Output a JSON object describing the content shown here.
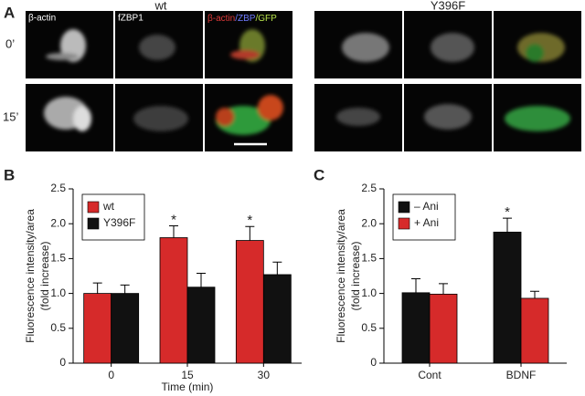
{
  "panel_labels": [
    "A",
    "B",
    "C"
  ],
  "panel_a": {
    "groups": [
      "wt",
      "Y396F"
    ],
    "rows": [
      "0’",
      "15’"
    ],
    "channel_labels": [
      "β-actin",
      "fZBP1"
    ],
    "merge_label": [
      {
        "text": "β-actin",
        "color": "#e03a3a"
      },
      {
        "text": "/ZBP",
        "color": "#6f7bff"
      },
      {
        "text": "/GFP",
        "color": "#b5e04a"
      }
    ]
  },
  "chart_data": [
    {
      "type": "bar",
      "y_label": [
        "Fluorescence intensity/area",
        "(fold increase)"
      ],
      "x_label": "Time (min)",
      "categories": [
        "0",
        "15",
        "30"
      ],
      "series": [
        {
          "name": "wt",
          "color": "#d62a2a",
          "values": [
            1.0,
            1.8,
            1.76
          ],
          "errors": [
            0.15,
            0.17,
            0.2
          ],
          "annotations": [
            null,
            "*",
            "*"
          ]
        },
        {
          "name": "Y396F",
          "color": "#111111",
          "values": [
            1.0,
            1.09,
            1.27
          ],
          "errors": [
            0.12,
            0.2,
            0.18
          ],
          "annotations": [
            null,
            null,
            null
          ]
        }
      ],
      "ylim": [
        0,
        2.5
      ],
      "yticks": [
        0,
        0.5,
        {
          "value": 1,
          "label": "1.0"
        },
        1.5,
        {
          "value": 2,
          "label": "2.0"
        },
        2.5
      ],
      "legend": "top-left"
    },
    {
      "type": "bar",
      "y_label": [
        "Fluorescence intensity/area",
        "(fold increase)"
      ],
      "categories": [
        "Cont",
        "BDNF"
      ],
      "series": [
        {
          "name": "– Ani",
          "color": "#111111",
          "values": [
            1.01,
            1.88
          ],
          "errors": [
            0.2,
            0.2
          ],
          "annotations": [
            null,
            "*"
          ]
        },
        {
          "name": "+ Ani",
          "color": "#d62a2a",
          "values": [
            0.99,
            0.93
          ],
          "errors": [
            0.15,
            0.1
          ],
          "annotations": [
            null,
            null
          ]
        }
      ],
      "ylim": [
        0,
        2.5
      ],
      "yticks": [
        0,
        0.5,
        {
          "value": 1,
          "label": "1.0"
        },
        1.5,
        {
          "value": 2,
          "label": "2.0"
        },
        2.5
      ],
      "legend": "top-left"
    }
  ]
}
